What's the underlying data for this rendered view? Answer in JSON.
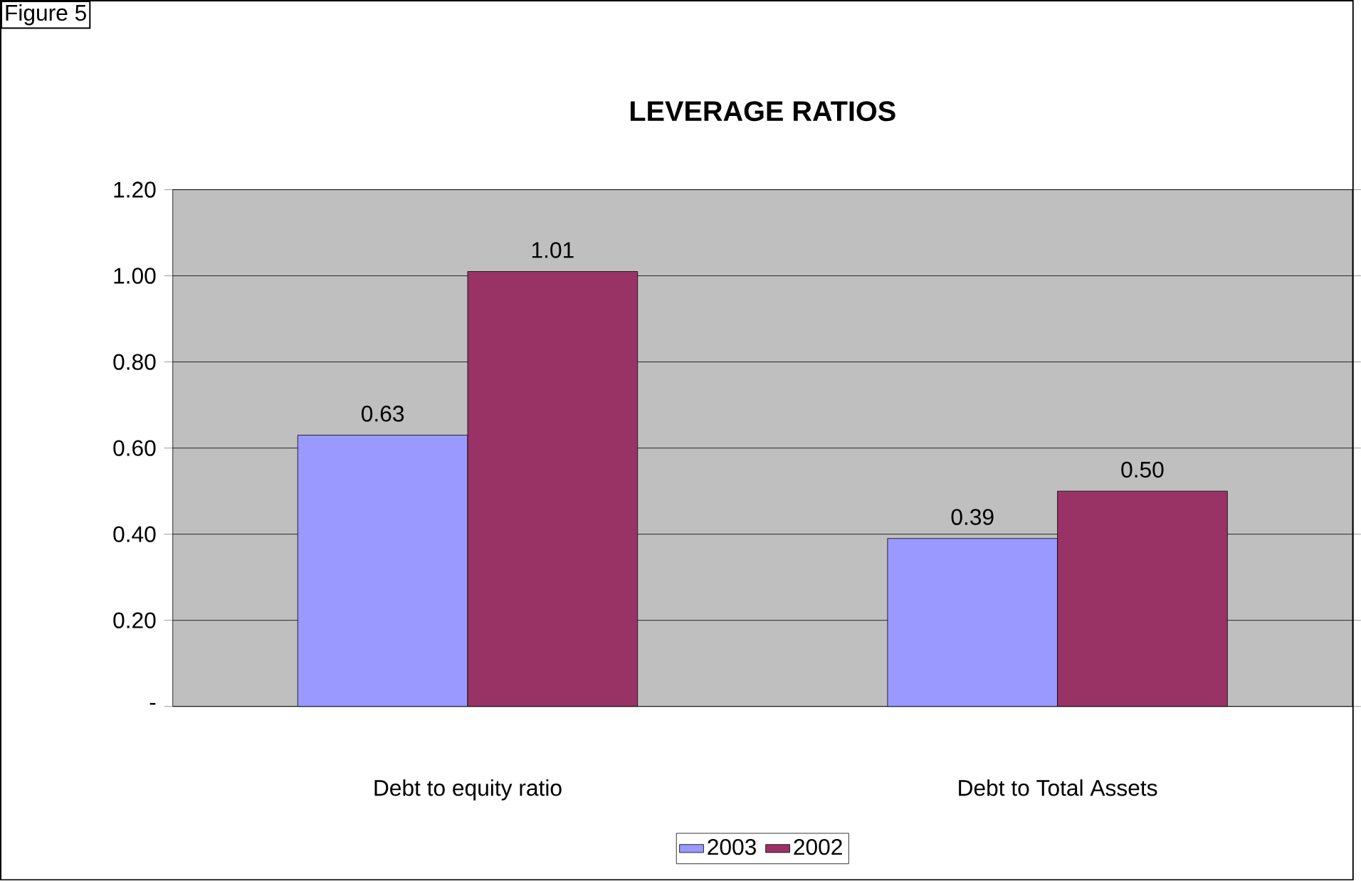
{
  "chart_data": {
    "type": "bar",
    "title": "LEVERAGE RATIOS",
    "annotations": [
      "Figure 5"
    ],
    "categories": [
      "Debt to equity ratio",
      "Debt to Total Assets"
    ],
    "series": [
      {
        "name": "2003",
        "color": "#9999ff",
        "values": [
          0.63,
          0.39
        ],
        "value_labels": [
          "0.63",
          "0.39"
        ]
      },
      {
        "name": "2002",
        "color": "#993366",
        "values": [
          1.01,
          0.5
        ],
        "value_labels": [
          "1.01",
          "0.50"
        ]
      }
    ],
    "ylim": [
      0,
      1.2
    ],
    "yticks": [
      {
        "value": 0,
        "label": "-"
      },
      {
        "value": 0.2,
        "label": "0.20"
      },
      {
        "value": 0.4,
        "label": "0.40"
      },
      {
        "value": 0.6,
        "label": "0.60"
      },
      {
        "value": 0.8,
        "label": "0.80"
      },
      {
        "value": 1.0,
        "label": "1.00"
      },
      {
        "value": 1.2,
        "label": "1.20"
      }
    ],
    "grid": "y",
    "legend": "bottom"
  }
}
